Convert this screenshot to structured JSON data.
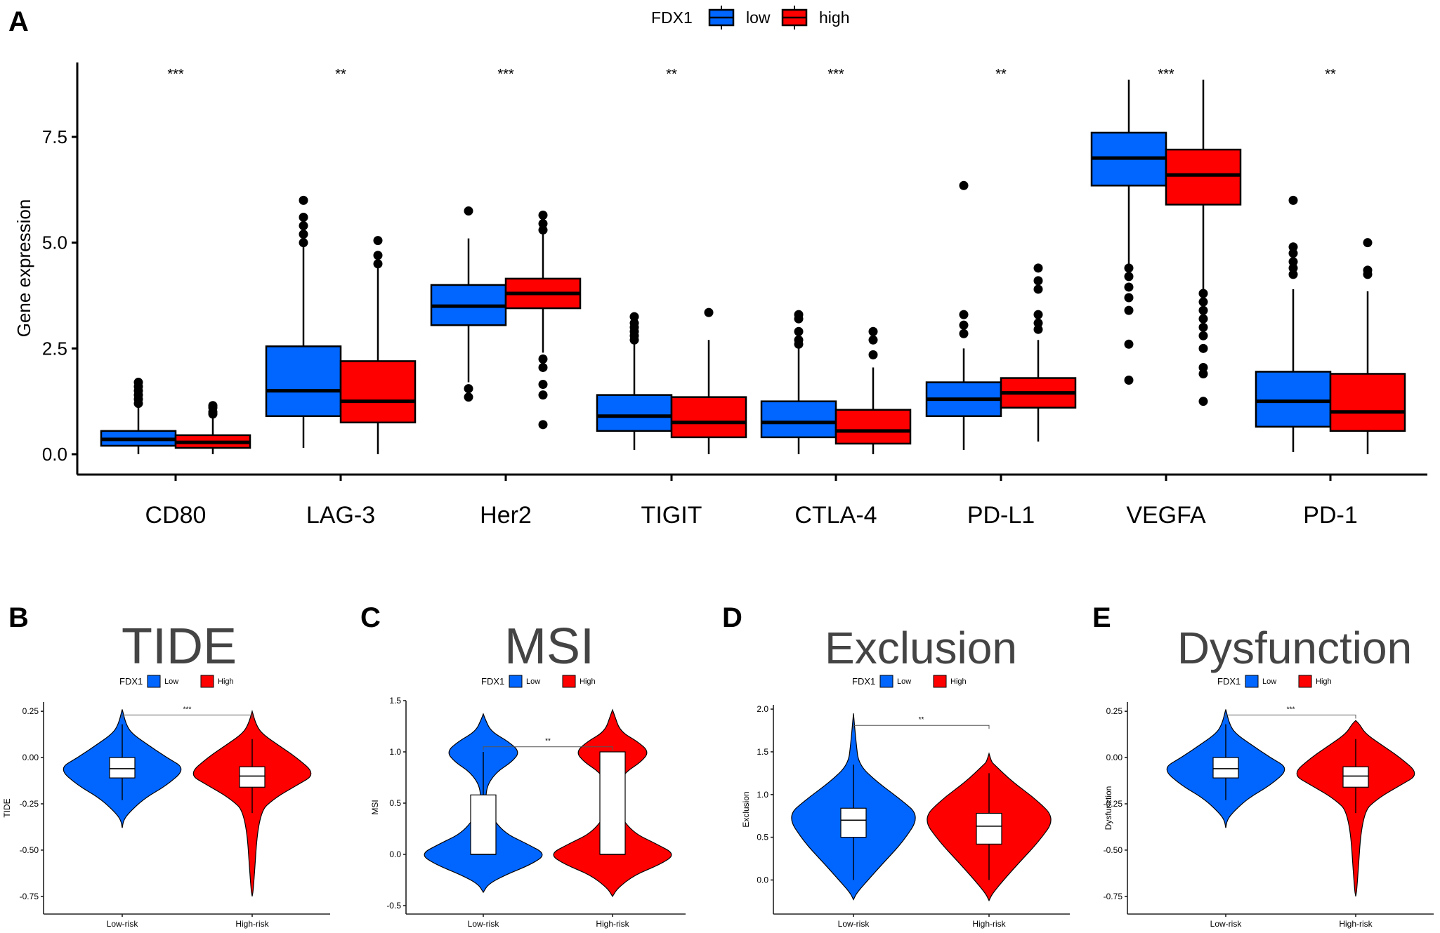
{
  "colors": {
    "low": "#0066ff",
    "high": "#ff0000",
    "box_white": "#ffffff",
    "title_gray": "#444444"
  },
  "chart_data": [
    {
      "panel": "A",
      "type": "boxplot",
      "title": "",
      "legend": {
        "title": "FDX1",
        "entries": [
          "low",
          "high"
        ],
        "placement": "top-center"
      },
      "xlabel": "",
      "ylabel": "Gene expression",
      "ylim": [
        -0.4,
        8.9
      ],
      "yticks": [
        0.0,
        2.5,
        5.0,
        7.5
      ],
      "ytick_labels": [
        "0.0",
        "2.5",
        "5.0",
        "7.5"
      ],
      "categories": [
        "CD80",
        "LAG-3",
        "Her2",
        "TIGIT",
        "CTLA-4",
        "PD-L1",
        "VEGFA",
        "PD-1"
      ],
      "significance": [
        "***",
        "**",
        "***",
        "**",
        "***",
        "**",
        "***",
        "**"
      ],
      "series": [
        {
          "name": "low",
          "boxes": [
            {
              "min": 0.0,
              "q1": 0.2,
              "median": 0.35,
              "q3": 0.55,
              "max": 1.1,
              "outliers": [
                1.2,
                1.3,
                1.4,
                1.5,
                1.6,
                1.7
              ]
            },
            {
              "min": 0.15,
              "q1": 0.9,
              "median": 1.5,
              "q3": 2.55,
              "max": 4.9,
              "outliers": [
                5.0,
                5.2,
                5.4,
                5.6,
                6.0
              ]
            },
            {
              "min": 1.7,
              "q1": 3.05,
              "median": 3.5,
              "q3": 4.0,
              "max": 5.1,
              "outliers": [
                1.35,
                1.55,
                5.75
              ]
            },
            {
              "min": 0.1,
              "q1": 0.55,
              "median": 0.9,
              "q3": 1.4,
              "max": 2.6,
              "outliers": [
                2.7,
                2.8,
                2.9,
                3.0,
                3.1,
                3.25
              ]
            },
            {
              "min": 0.0,
              "q1": 0.4,
              "median": 0.75,
              "q3": 1.25,
              "max": 2.5,
              "outliers": [
                2.6,
                2.7,
                2.9,
                3.2,
                3.3
              ]
            },
            {
              "min": 0.1,
              "q1": 0.9,
              "median": 1.3,
              "q3": 1.7,
              "max": 2.5,
              "outliers": [
                2.85,
                3.05,
                3.3,
                6.35
              ]
            },
            {
              "min": 4.5,
              "q1": 6.35,
              "median": 7.0,
              "q3": 7.6,
              "max": 8.85,
              "outliers": [
                1.75,
                2.6,
                3.4,
                3.7,
                3.95,
                4.2,
                4.4
              ]
            },
            {
              "min": 0.05,
              "q1": 0.65,
              "median": 1.25,
              "q3": 1.95,
              "max": 3.9,
              "outliers": [
                4.25,
                4.4,
                4.55,
                4.75,
                4.9,
                6.0
              ]
            }
          ]
        },
        {
          "name": "high",
          "boxes": [
            {
              "min": 0.0,
              "q1": 0.15,
              "median": 0.28,
              "q3": 0.45,
              "max": 0.85,
              "outliers": [
                0.95,
                1.0,
                1.1,
                1.15
              ]
            },
            {
              "min": 0.0,
              "q1": 0.75,
              "median": 1.25,
              "q3": 2.2,
              "max": 4.4,
              "outliers": [
                4.5,
                4.7,
                5.05
              ]
            },
            {
              "min": 2.4,
              "q1": 3.45,
              "median": 3.8,
              "q3": 4.15,
              "max": 5.2,
              "outliers": [
                0.7,
                1.4,
                1.65,
                2.05,
                2.25,
                5.3,
                5.45,
                5.65
              ]
            },
            {
              "min": 0.0,
              "q1": 0.4,
              "median": 0.75,
              "q3": 1.35,
              "max": 2.7,
              "outliers": [
                3.35
              ]
            },
            {
              "min": 0.0,
              "q1": 0.25,
              "median": 0.55,
              "q3": 1.05,
              "max": 2.05,
              "outliers": [
                2.35,
                2.7,
                2.9
              ]
            },
            {
              "min": 0.3,
              "q1": 1.1,
              "median": 1.45,
              "q3": 1.8,
              "max": 2.7,
              "outliers": [
                2.95,
                3.1,
                3.3,
                3.9,
                4.1,
                4.4
              ]
            },
            {
              "min": 3.9,
              "q1": 5.9,
              "median": 6.6,
              "q3": 7.2,
              "max": 8.85,
              "outliers": [
                1.25,
                1.9,
                2.05,
                2.5,
                2.8,
                3.0,
                3.2,
                3.4,
                3.6,
                3.8
              ]
            },
            {
              "min": 0.0,
              "q1": 0.55,
              "median": 1.0,
              "q3": 1.9,
              "max": 3.85,
              "outliers": [
                4.25,
                4.35,
                5.0
              ]
            }
          ]
        }
      ]
    },
    {
      "panel": "B",
      "type": "violin",
      "title": "TIDE",
      "ylabel": "TIDE",
      "legend": {
        "title": "FDX1",
        "entries": [
          "Low",
          "High"
        ],
        "placement": "top-center"
      },
      "categories": [
        "Low-risk",
        "High-risk"
      ],
      "ylim": [
        -0.8,
        0.3
      ],
      "yticks": [
        0.25,
        0.0,
        -0.25,
        -0.5,
        -0.75
      ],
      "ytick_labels": [
        "0.25",
        "0.00",
        "-0.25",
        "-0.50",
        "-0.75"
      ],
      "significance": "***",
      "groups": [
        {
          "name": "Low",
          "violin_min": -0.38,
          "violin_max": 0.26,
          "mode": -0.06,
          "q1": -0.11,
          "median": -0.06,
          "q3": 0.0,
          "whisker_low": -0.23,
          "whisker_high": 0.18
        },
        {
          "name": "High",
          "violin_min": -0.75,
          "violin_max": 0.25,
          "mode": -0.08,
          "q1": -0.16,
          "median": -0.1,
          "q3": -0.05,
          "whisker_low": -0.3,
          "whisker_high": 0.1
        }
      ]
    },
    {
      "panel": "C",
      "type": "violin",
      "title": "MSI",
      "ylabel": "MSI",
      "legend": {
        "title": "FDX1",
        "entries": [
          "Low",
          "High"
        ],
        "placement": "top-center"
      },
      "categories": [
        "Low-risk",
        "High-risk"
      ],
      "ylim": [
        -0.5,
        1.5
      ],
      "yticks": [
        1.5,
        1.0,
        0.5,
        0.0,
        -0.5
      ],
      "ytick_labels": [
        "1.5",
        "1.0",
        "0.5",
        "0.0",
        "-0.5"
      ],
      "significance": "**",
      "groups": [
        {
          "name": "Low",
          "violin_min": -0.37,
          "violin_max": 1.37,
          "q1": 0.0,
          "median": 0.0,
          "q3": 0.58,
          "whisker_low": 0.0,
          "whisker_high": 1.0
        },
        {
          "name": "High",
          "violin_min": -0.41,
          "violin_max": 1.41,
          "q1": 0.0,
          "median": 0.0,
          "q3": 1.0,
          "whisker_low": 0.0,
          "whisker_high": 1.0
        }
      ]
    },
    {
      "panel": "D",
      "type": "violin",
      "title": "Exclusion",
      "ylabel": "Exclusion",
      "legend": {
        "title": "FDX1",
        "entries": [
          "Low",
          "High"
        ],
        "placement": "top-center"
      },
      "categories": [
        "Low-risk",
        "High-risk"
      ],
      "ylim": [
        -0.3,
        2.05
      ],
      "yticks": [
        2.0,
        1.5,
        1.0,
        0.5,
        0.0
      ],
      "ytick_labels": [
        "2.0",
        "1.5",
        "1.0",
        "0.5",
        "0.0"
      ],
      "significance": "**",
      "groups": [
        {
          "name": "Low",
          "violin_min": -0.23,
          "violin_max": 1.95,
          "q1": 0.5,
          "median": 0.7,
          "q3": 0.84,
          "whisker_low": 0.0,
          "whisker_high": 1.35
        },
        {
          "name": "High",
          "violin_min": -0.24,
          "violin_max": 1.48,
          "q1": 0.42,
          "median": 0.63,
          "q3": 0.78,
          "whisker_low": 0.0,
          "whisker_high": 1.25
        }
      ]
    },
    {
      "panel": "E",
      "type": "violin",
      "title": "Dysfunction",
      "ylabel": "Dysfunction",
      "legend": {
        "title": "FDX1",
        "entries": [
          "Low",
          "High"
        ],
        "placement": "top-center"
      },
      "categories": [
        "Low-risk",
        "High-risk"
      ],
      "ylim": [
        -0.8,
        0.3
      ],
      "yticks": [
        0.25,
        0.0,
        -0.25,
        -0.5,
        -0.75
      ],
      "ytick_labels": [
        "0.25",
        "0.00",
        "-0.25",
        "-0.50",
        "-0.75"
      ],
      "significance": "***",
      "groups": [
        {
          "name": "Low",
          "violin_min": -0.38,
          "violin_max": 0.26,
          "q1": -0.11,
          "median": -0.06,
          "q3": 0.0,
          "whisker_low": -0.23,
          "whisker_high": 0.18
        },
        {
          "name": "High",
          "violin_min": -0.75,
          "violin_max": 0.2,
          "q1": -0.16,
          "median": -0.1,
          "q3": -0.05,
          "whisker_low": -0.3,
          "whisker_high": 0.1
        }
      ]
    }
  ]
}
